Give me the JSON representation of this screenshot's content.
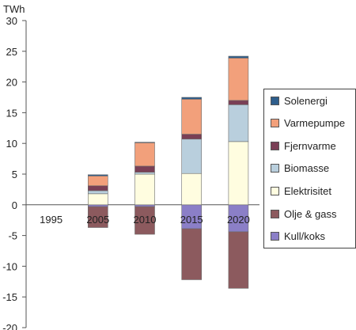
{
  "chart_data": {
    "type": "bar",
    "stacked": true,
    "ylabel": "TWh",
    "ylim": [
      -20,
      30
    ],
    "yticks": [
      30,
      25,
      20,
      15,
      10,
      5,
      0,
      -5,
      -10,
      -15,
      -20
    ],
    "categories": [
      "1995",
      "2005",
      "2010",
      "2015",
      "2020"
    ],
    "series": [
      {
        "name": "Kull/koks",
        "color": "#8B7FC7",
        "values": [
          0,
          -0.3,
          -0.3,
          -3.9,
          -4.4
        ]
      },
      {
        "name": "Olje & gass",
        "color": "#8C5A5E",
        "values": [
          0,
          -3.4,
          -4.5,
          -8.3,
          -9.2
        ]
      },
      {
        "name": "Elektrisitet",
        "color": "#FFFDE0",
        "values": [
          0,
          1.8,
          5.0,
          5.1,
          10.3
        ]
      },
      {
        "name": "Biomasse",
        "color": "#B9CFDD",
        "values": [
          0,
          0.5,
          0.3,
          5.6,
          6.0
        ]
      },
      {
        "name": "Fjernvarme",
        "color": "#7A3F55",
        "values": [
          0,
          0.8,
          1.0,
          0.8,
          0.7
        ]
      },
      {
        "name": "Varmepumpe",
        "color": "#F2A07B",
        "values": [
          0,
          1.6,
          3.8,
          5.7,
          6.9
        ]
      },
      {
        "name": "Solenergi",
        "color": "#2E5E8C",
        "values": [
          0,
          0.2,
          0.1,
          0.3,
          0.3
        ]
      }
    ],
    "legend": [
      "Solenergi",
      "Varmepumpe",
      "Fjernvarme",
      "Biomasse",
      "Elektrisitet",
      "Olje & gass",
      "Kull/koks"
    ],
    "legend_position": "right",
    "grid": false
  }
}
